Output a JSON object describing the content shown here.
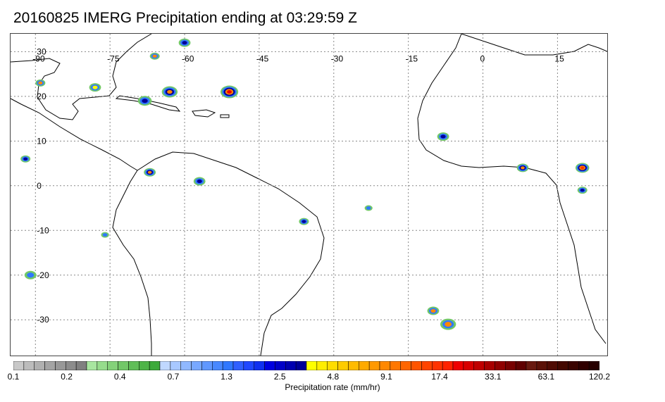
{
  "title": "20160825 IMERG Precipitation ending at 03:29:59 Z",
  "map": {
    "lon_labels": [
      "-90",
      "-75",
      "-60",
      "-45",
      "-30",
      "-15",
      "0",
      "15"
    ],
    "lat_labels": [
      "30",
      "20",
      "10",
      "0",
      "-10",
      "-20",
      "-30"
    ],
    "lon_range": [
      -95,
      25
    ],
    "lat_range": [
      -38,
      34
    ],
    "grid": true,
    "grid_spacing_lon": 15,
    "grid_spacing_lat": 10,
    "coastline_color": "#000000",
    "grid_color": "#888888"
  },
  "colorbar": {
    "title": "Precipitation rate (mm/hr)",
    "tick_labels": [
      "0.1",
      "0.2",
      "0.4",
      "0.7",
      "1.3",
      "2.5",
      "4.8",
      "9.1",
      "17.4",
      "33.1",
      "63.1",
      "120.2"
    ],
    "colors": [
      "#c8c8c8",
      "#bcbcbc",
      "#b0b0b0",
      "#a4a4a4",
      "#989898",
      "#8c8c8c",
      "#808080",
      "#a8e6a0",
      "#96dc8c",
      "#84d27a",
      "#72c868",
      "#60be58",
      "#4eb448",
      "#3caa3a",
      "#c0d8ff",
      "#a8c8ff",
      "#90b8ff",
      "#78a8ff",
      "#6098ff",
      "#4888ff",
      "#3078ff",
      "#3060ff",
      "#2048ff",
      "#1030f0",
      "#0000e0",
      "#0000c8",
      "#0000b0",
      "#000098",
      "#ffff00",
      "#ffee00",
      "#ffdd00",
      "#ffcc00",
      "#ffbb00",
      "#ffaa00",
      "#ff9900",
      "#ff8800",
      "#ff7700",
      "#ff6600",
      "#ff5500",
      "#ff4400",
      "#ff3300",
      "#ff2200",
      "#ee0000",
      "#d80000",
      "#c00000",
      "#a80000",
      "#900000",
      "#780000",
      "#600000",
      "#6a1a10",
      "#5c1208",
      "#500c04",
      "#440800",
      "#3a0400",
      "#300000",
      "#280000"
    ]
  }
}
